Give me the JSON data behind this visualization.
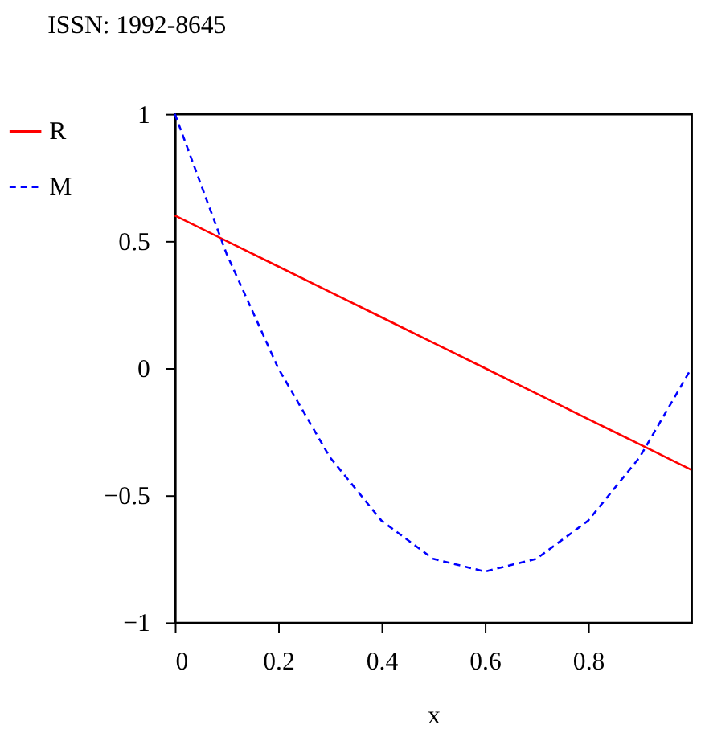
{
  "chart_data": {
    "type": "line",
    "xlabel": "x",
    "annotations": [
      "ISSN: 1992-8645"
    ],
    "x": [
      0,
      0.1,
      0.2,
      0.3,
      0.4,
      0.5,
      0.6,
      0.7,
      0.8,
      0.9,
      1
    ],
    "series": [
      {
        "name": "R",
        "color": "#ff0000",
        "line_style": "solid",
        "values": [
          0.6,
          0.5,
          0.4,
          0.3,
          0.2,
          0.1,
          0,
          -0.1,
          -0.2,
          -0.3,
          -0.4
        ]
      },
      {
        "name": "M",
        "color": "#0000ff",
        "line_style": "dashed",
        "values": [
          1,
          0.45,
          0,
          -0.35,
          -0.6,
          -0.75,
          -0.8,
          -0.75,
          -0.6,
          -0.35,
          0
        ]
      }
    ],
    "xlim": [
      0,
      1
    ],
    "xticks": [
      0,
      0.2,
      0.4,
      0.6,
      0.8
    ],
    "ylim": [
      -1,
      1
    ],
    "yticks": [
      -1,
      -0.5,
      0,
      0.5,
      1
    ],
    "grid": false,
    "legend": "left",
    "marker": "none"
  }
}
